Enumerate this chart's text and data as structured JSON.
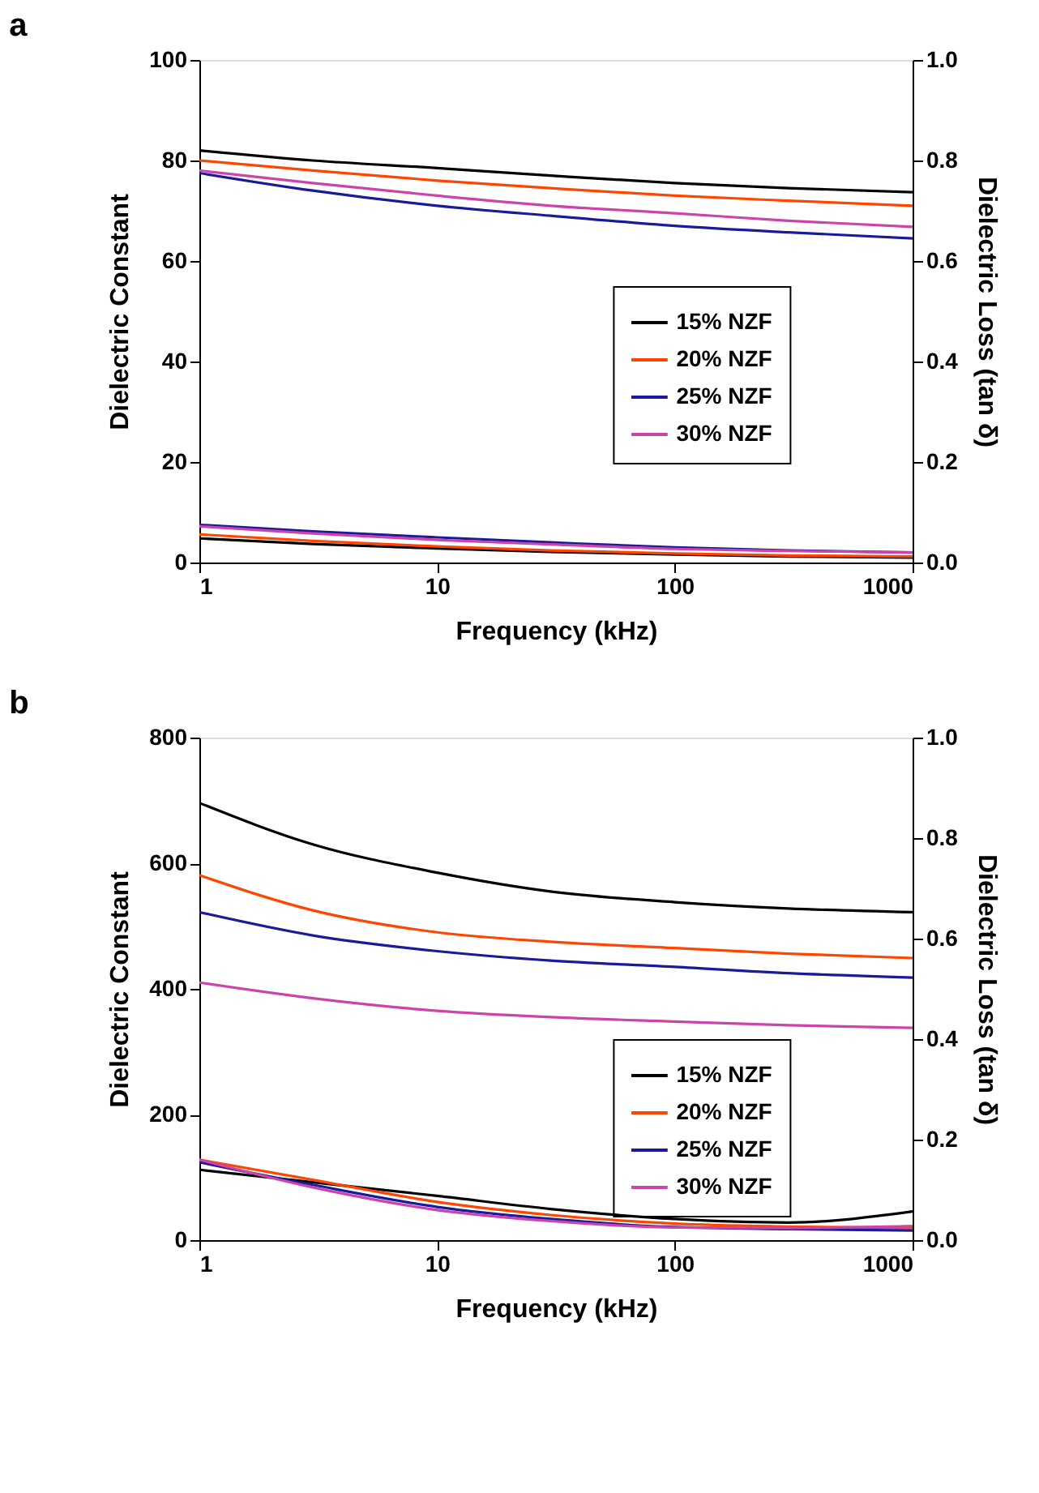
{
  "chart_data": [
    {
      "type": "line",
      "title": "a",
      "xlabel": "Frequency (kHz)",
      "ylabel": "Dielectric Constant",
      "y2label": "Dielectric Loss (tan δ)",
      "x": [
        1,
        3,
        10,
        30,
        100,
        300,
        1000
      ],
      "xlim": [
        1,
        1000
      ],
      "xticks": [
        1,
        10,
        100,
        1000
      ],
      "log": "x",
      "ylim": [
        0,
        100
      ],
      "yticks": [
        0,
        20,
        40,
        60,
        80,
        100
      ],
      "y2lim": [
        0,
        1
      ],
      "y2ticks": [
        {
          "value": 0,
          "label": "0.0"
        },
        {
          "value": 0.2,
          "label": "0.2"
        },
        {
          "value": 0.4,
          "label": "0.4"
        },
        {
          "value": 0.6,
          "label": "0.6"
        },
        {
          "value": 0.8,
          "label": "0.8"
        },
        {
          "value": 1,
          "label": "1.0"
        }
      ],
      "grid": false,
      "legend": "right",
      "series": [
        {
          "name": "15% NZF",
          "color": "#000000",
          "values": [
            82,
            80,
            78.5,
            77,
            75.5,
            74.5,
            73.7
          ]
        },
        {
          "name": "20% NZF",
          "color": "#ff4500",
          "values": [
            80,
            78,
            76,
            74.5,
            73,
            72,
            71
          ]
        },
        {
          "name": "25% NZF",
          "color": "#1a1a9a",
          "values": [
            77.5,
            74,
            71,
            69,
            67,
            65.7,
            64.5
          ]
        },
        {
          "name": "30% NZF",
          "color": "#cc44aa",
          "values": [
            78,
            75.5,
            73,
            71,
            69.5,
            68,
            66.8
          ]
        },
        {
          "axis": "y2",
          "color": "#000000",
          "values": [
            0.048,
            0.037,
            0.028,
            0.021,
            0.016,
            0.012,
            0.01
          ]
        },
        {
          "axis": "y2",
          "color": "#ff4500",
          "values": [
            0.056,
            0.043,
            0.032,
            0.024,
            0.018,
            0.014,
            0.012
          ]
        },
        {
          "axis": "y2",
          "color": "#1a1a9a",
          "values": [
            0.075,
            0.062,
            0.05,
            0.04,
            0.03,
            0.024,
            0.02
          ]
        },
        {
          "axis": "y2",
          "color": "#cc44aa",
          "values": [
            0.072,
            0.058,
            0.045,
            0.036,
            0.027,
            0.023,
            0.02
          ]
        }
      ]
    },
    {
      "type": "line",
      "title": "b",
      "xlabel": "Frequency (kHz)",
      "ylabel": "Dielectric Constant",
      "y2label": "Dielectric Loss (tan δ)",
      "x": [
        1,
        3,
        10,
        30,
        100,
        300,
        1000
      ],
      "xlim": [
        1,
        1000
      ],
      "xticks": [
        1,
        10,
        100,
        1000
      ],
      "log": "x",
      "ylim": [
        0,
        800
      ],
      "yticks": [
        0,
        200,
        400,
        600,
        800
      ],
      "y2lim": [
        0,
        1
      ],
      "y2ticks": [
        {
          "value": 0,
          "label": "0.0"
        },
        {
          "value": 0.2,
          "label": "0.2"
        },
        {
          "value": 0.4,
          "label": "0.4"
        },
        {
          "value": 0.6,
          "label": "0.6"
        },
        {
          "value": 0.8,
          "label": "0.8"
        },
        {
          "value": 1,
          "label": "1.0"
        }
      ],
      "grid": false,
      "legend": "bottom right",
      "series": [
        {
          "name": "15% NZF",
          "color": "#000000",
          "values": [
            696,
            630,
            585,
            555,
            538,
            528,
            522
          ]
        },
        {
          "name": "20% NZF",
          "color": "#ff4500",
          "values": [
            581,
            525,
            490,
            475,
            465,
            456,
            449
          ]
        },
        {
          "name": "25% NZF",
          "color": "#1a1a9a",
          "values": [
            522,
            485,
            460,
            445,
            435,
            425,
            418
          ]
        },
        {
          "name": "30% NZF",
          "color": "#cc44aa",
          "values": [
            410,
            385,
            365,
            355,
            348,
            342,
            338
          ]
        },
        {
          "axis": "y2",
          "color": "#000000",
          "values": [
            0.14,
            0.115,
            0.088,
            0.062,
            0.042,
            0.035,
            0.057
          ]
        },
        {
          "axis": "y2",
          "color": "#ff4500",
          "values": [
            0.16,
            0.12,
            0.076,
            0.05,
            0.033,
            0.027,
            0.024
          ]
        },
        {
          "axis": "y2",
          "color": "#1a1a9a",
          "values": [
            0.155,
            0.11,
            0.066,
            0.042,
            0.026,
            0.022,
            0.019
          ]
        },
        {
          "axis": "y2",
          "color": "#cc44aa",
          "values": [
            0.16,
            0.105,
            0.06,
            0.038,
            0.025,
            0.024,
            0.028
          ]
        }
      ]
    }
  ]
}
